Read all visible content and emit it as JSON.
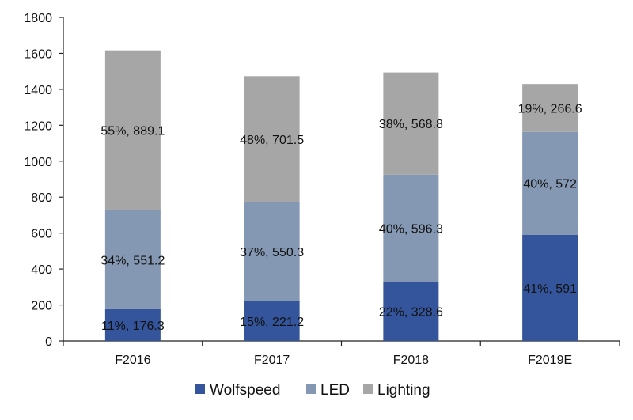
{
  "chart_data": {
    "type": "bar",
    "stacked": true,
    "categories": [
      "F2016",
      "F2017",
      "F2018",
      "F2019E"
    ],
    "series": [
      {
        "name": "Wolfspeed",
        "color": "#34559b",
        "values": [
          176.3,
          221.2,
          328.6,
          591
        ],
        "labels": [
          "11%, 176.3",
          "15%, 221.2",
          "22%, 328.6",
          "41%, 591"
        ]
      },
      {
        "name": "LED",
        "color": "#8598b3",
        "values": [
          551.2,
          550.3,
          596.3,
          572
        ],
        "labels": [
          "34%, 551.2",
          "37%, 550.3",
          "40%, 596.3",
          "40%, 572"
        ]
      },
      {
        "name": "Lighting",
        "color": "#a6a6a6",
        "values": [
          889.1,
          701.5,
          568.8,
          266.6
        ],
        "labels": [
          "55%, 889.1",
          "48%, 701.5",
          "38%, 568.8",
          "19%, 266.6"
        ]
      }
    ],
    "ylim": [
      0,
      1800
    ],
    "yticks": [
      0,
      200,
      400,
      600,
      800,
      1000,
      1200,
      1400,
      1600,
      1800
    ],
    "grid": false,
    "legend": "bottom",
    "title": "",
    "xlabel": "",
    "ylabel": ""
  }
}
